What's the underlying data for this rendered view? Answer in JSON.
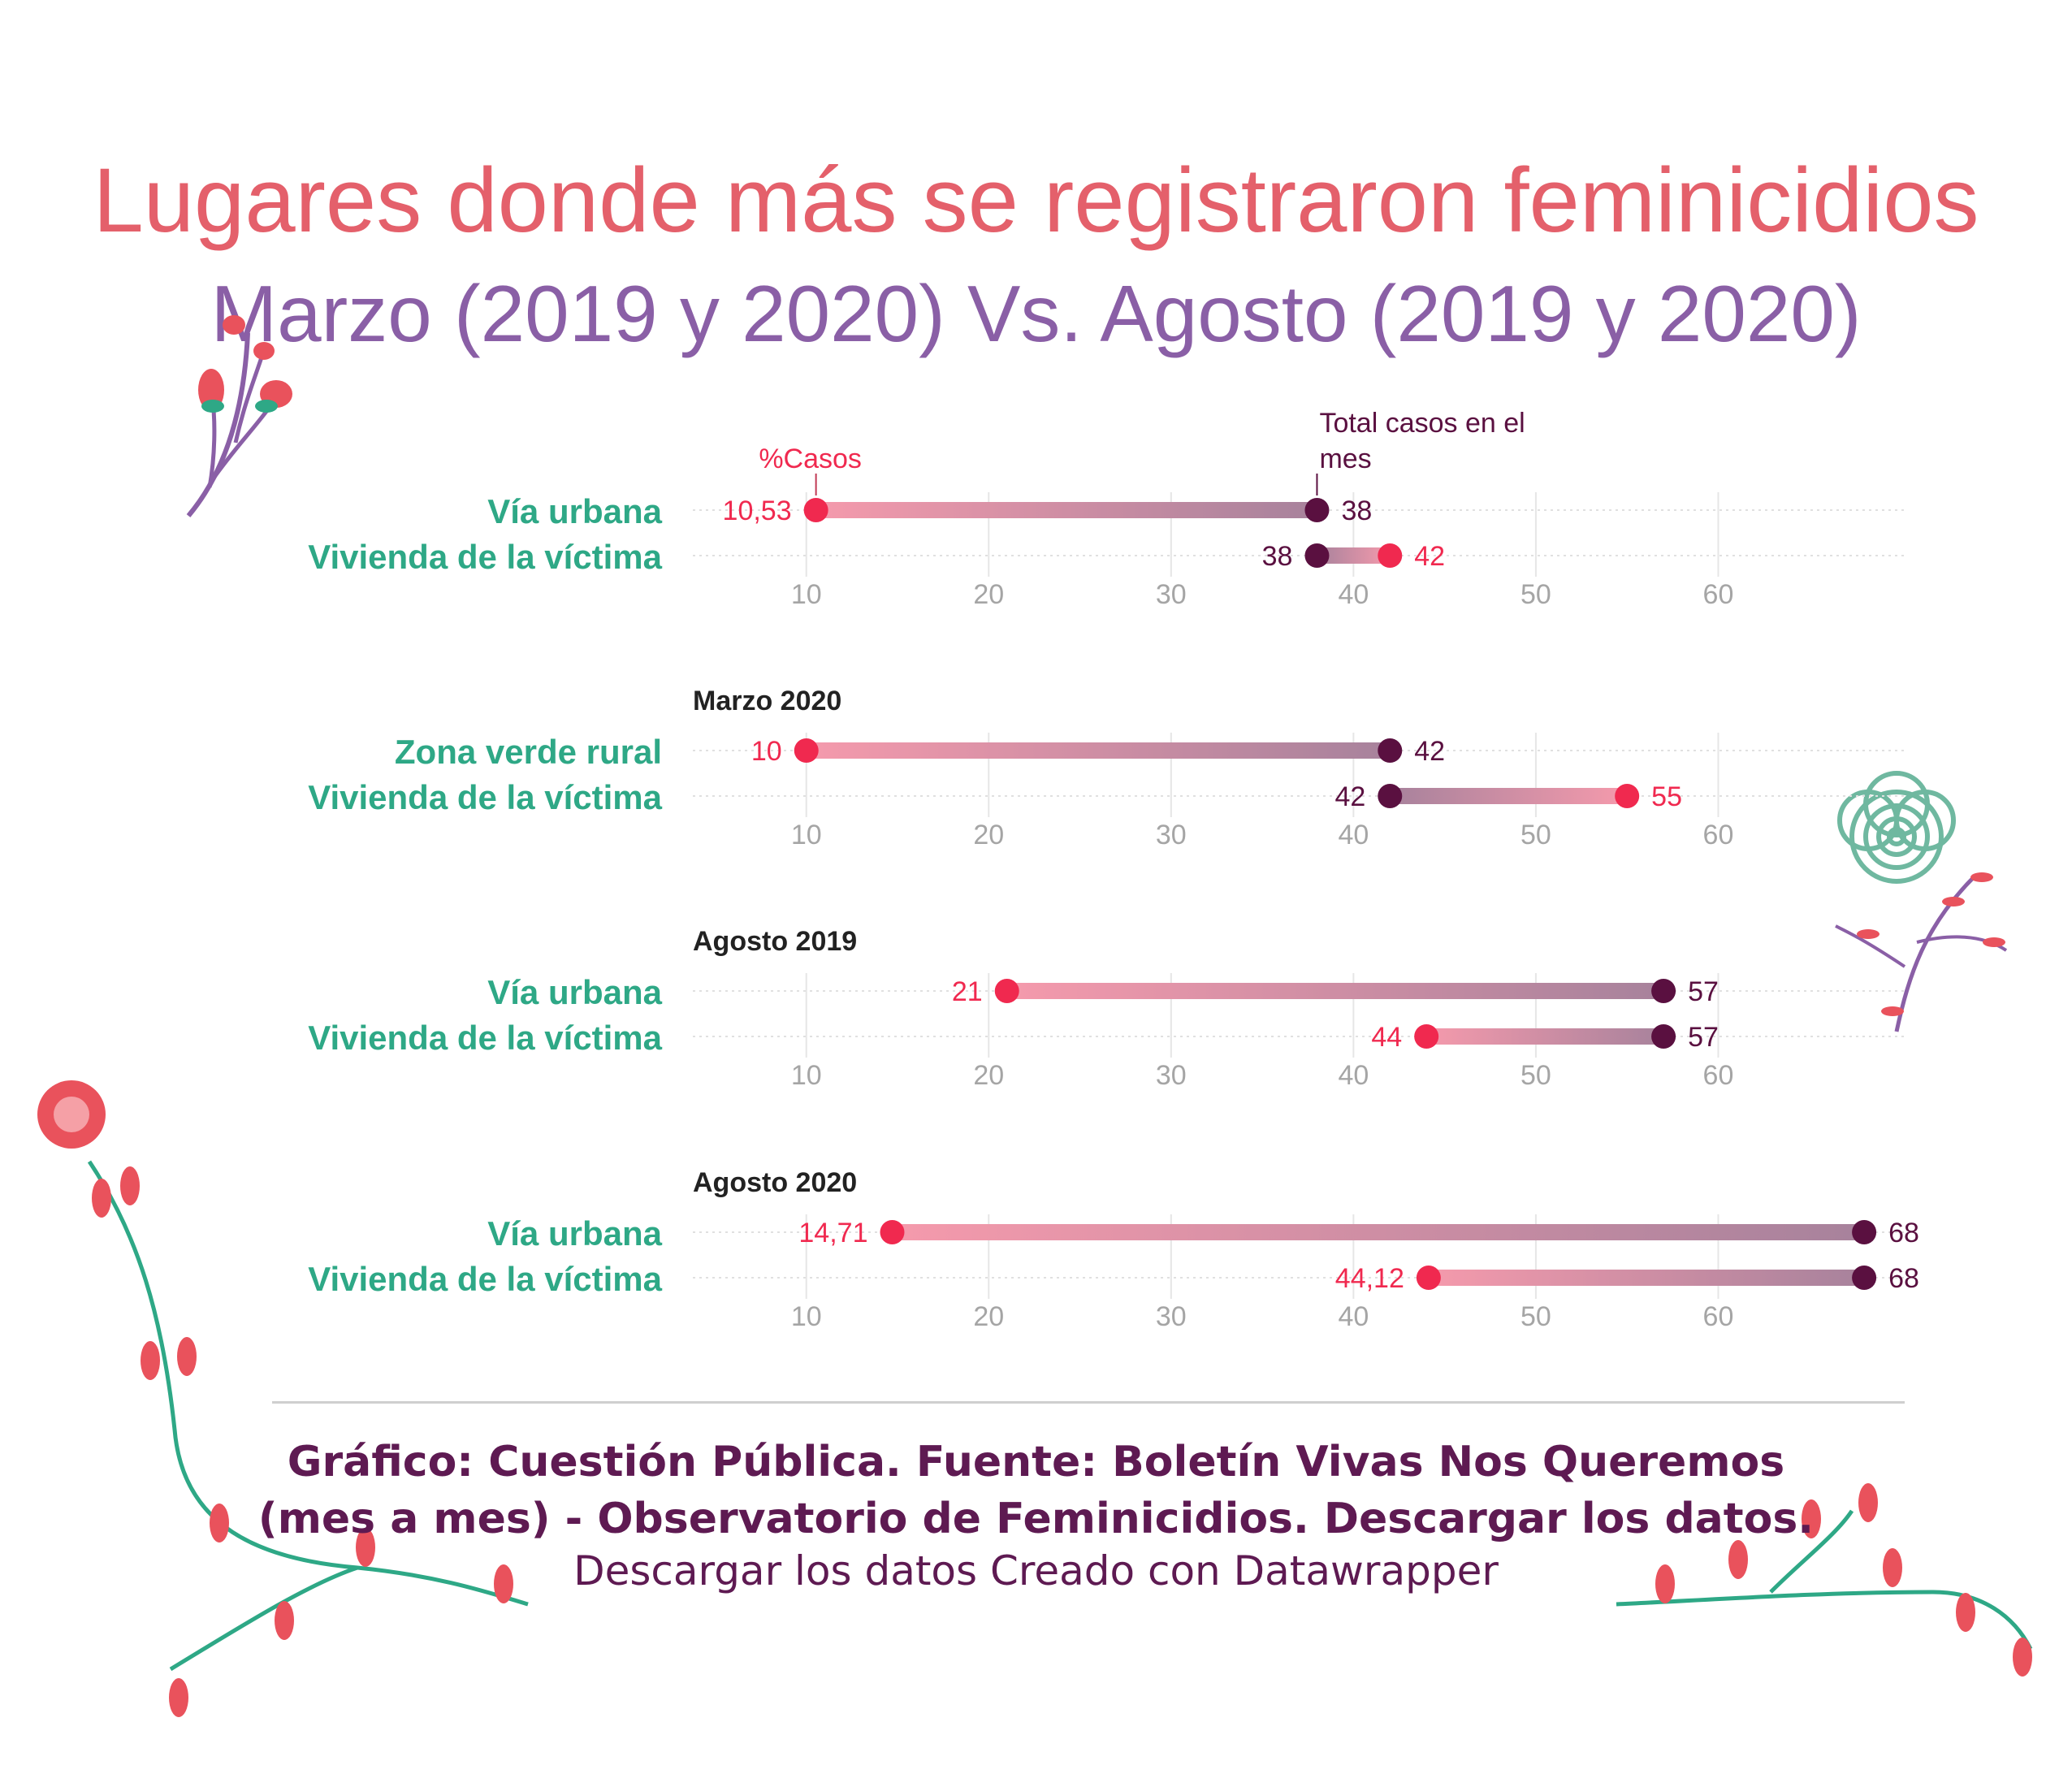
{
  "header": {
    "title": "Lugares donde más se registraron feminicidios",
    "subtitle": "Marzo (2019 y 2020) Vs. Agosto (2019 y 2020)"
  },
  "colors": {
    "pct": "#f0294f",
    "total": "#5a1040",
    "category": "#2ea886",
    "title": "#e4606b",
    "subtitle": "#8a5fa6",
    "footer": "#5e1a52"
  },
  "legend": {
    "pct_label": "%Casos",
    "total_label_line1": "Total casos en el",
    "total_label_line2": "mes"
  },
  "chart_data": {
    "type": "dumbbell",
    "xlim": [
      4,
      70
    ],
    "x_ticks": [
      "10",
      "20",
      "30",
      "40",
      "50",
      "60"
    ],
    "series": [
      {
        "key": "pct",
        "name": "%Casos"
      },
      {
        "key": "total",
        "name": "Total casos en el mes"
      }
    ],
    "panels": [
      {
        "title": "",
        "rows": [
          {
            "label": "Vía urbana",
            "pct": 10.53,
            "pct_text": "10,53",
            "total": 38,
            "total_text": "38"
          },
          {
            "label": "Vivienda de la víctima",
            "pct": 42,
            "pct_text": "42",
            "total": 38,
            "total_text": "38"
          }
        ]
      },
      {
        "title": "Marzo 2020",
        "rows": [
          {
            "label": "Zona verde rural",
            "pct": 10,
            "pct_text": "10",
            "total": 42,
            "total_text": "42"
          },
          {
            "label": "Vivienda de la víctima",
            "pct": 55,
            "pct_text": "55",
            "total": 42,
            "total_text": "42"
          }
        ]
      },
      {
        "title": "Agosto 2019",
        "rows": [
          {
            "label": "Vía urbana",
            "pct": 21,
            "pct_text": "21",
            "total": 57,
            "total_text": "57"
          },
          {
            "label": "Vivienda de la víctima",
            "pct": 44,
            "pct_text": "44",
            "total": 57,
            "total_text": "57"
          }
        ]
      },
      {
        "title": "Agosto 2020",
        "rows": [
          {
            "label": "Vía urbana",
            "pct": 14.71,
            "pct_text": "14,71",
            "total": 68,
            "total_text": "68"
          },
          {
            "label": "Vivienda de la víctima",
            "pct": 44.12,
            "pct_text": "44,12",
            "total": 68,
            "total_text": "68"
          }
        ]
      }
    ]
  },
  "footer": {
    "line1": "Gráfico: Cuestión Pública. Fuente: Boletín Vivas Nos Queremos",
    "line2": "(mes a mes) - Observatorio de Feminicidios. Descargar los datos.",
    "line3": "Descargar los datos Creado con Datawrapper"
  },
  "decorations": [
    "flower-sprig-icon",
    "flower-bud-icon",
    "spiral-rose-icon",
    "vine-branch-icon"
  ]
}
